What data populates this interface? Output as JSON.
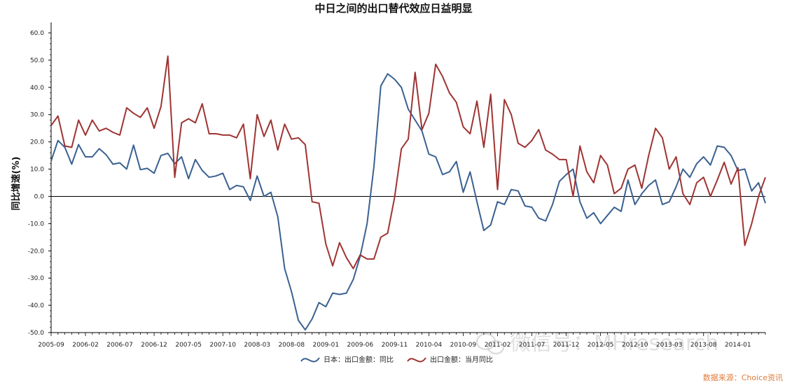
{
  "chart_data": {
    "type": "line",
    "title": "中日之间的出口替代效应日益明显",
    "ylabel": "同比增速(%)",
    "xlabel": "",
    "ylim": [
      -50,
      60
    ],
    "yticks": [
      "60.0",
      "50.0",
      "40.0",
      "30.0",
      "20.0",
      "10.0",
      "0.0",
      "-10.0",
      "-20.0",
      "-30.0",
      "-40.0",
      "-50.0"
    ],
    "xtick_labels": [
      "2005-09",
      "2006-02",
      "2006-07",
      "2006-12",
      "2007-05",
      "2007-10",
      "2008-03",
      "2008-08",
      "2009-01",
      "2009-06",
      "2009-11",
      "2010-04",
      "2010-09",
      "2011-02",
      "2011-07",
      "2011-12",
      "2012-05",
      "2012-10",
      "2013-03",
      "2013-08",
      "2014-01"
    ],
    "x_start": "2005-09",
    "x_end": "2014-05",
    "grid": false,
    "legend_position": "bottom",
    "zero_line": true,
    "series": [
      {
        "name": "日本：出口金额：同比",
        "color": "#3a6191",
        "values": [
          13.0,
          20.5,
          18.0,
          11.8,
          19.0,
          14.5,
          14.5,
          17.5,
          15.3,
          11.8,
          12.3,
          10.0,
          18.8,
          9.8,
          10.3,
          8.5,
          15.0,
          15.8,
          12.0,
          14.5,
          6.5,
          13.5,
          9.5,
          7.0,
          7.5,
          8.5,
          2.5,
          4.0,
          3.5,
          -1.5,
          7.5,
          0.0,
          1.5,
          -7.5,
          -26.5,
          -35.0,
          -45.5,
          -49.0,
          -45.0,
          -39.0,
          -40.5,
          -35.5,
          -36.0,
          -35.5,
          -30.5,
          -22.0,
          -10.0,
          11.0,
          40.5,
          45.0,
          43.0,
          40.0,
          32.0,
          28.0,
          24.0,
          15.5,
          14.5,
          8.0,
          9.0,
          12.8,
          1.5,
          9.0,
          -2.0,
          -12.5,
          -10.5,
          -2.0,
          -3.0,
          2.5,
          2.0,
          -3.5,
          -4.0,
          -8.0,
          -9.0,
          -3.0,
          5.5,
          8.0,
          10.0,
          -2.0,
          -8.0,
          -6.0,
          -10.0,
          -7.0,
          -4.0,
          -5.5,
          6.0,
          -3.0,
          1.0,
          4.0,
          6.0,
          -3.0,
          -2.0,
          3.5,
          10.0,
          7.0,
          12.0,
          14.5,
          11.5,
          18.5,
          18.0,
          15.0,
          9.5,
          10.0,
          2.0,
          5.0,
          -2.5
        ]
      },
      {
        "name": "出口金额：当月同比",
        "color": "#9e3432",
        "values": [
          26.0,
          29.5,
          18.5,
          18.0,
          28.0,
          22.5,
          28.0,
          24.0,
          25.0,
          23.5,
          22.5,
          32.5,
          30.5,
          29.0,
          32.5,
          25.0,
          33.0,
          51.5,
          7.0,
          27.0,
          28.5,
          27.0,
          34.0,
          23.0,
          23.0,
          22.5,
          22.5,
          21.5,
          26.5,
          6.5,
          30.0,
          22.0,
          28.0,
          17.0,
          26.5,
          21.0,
          21.5,
          19.0,
          -2.0,
          -2.5,
          -17.5,
          -25.5,
          -17.0,
          -22.5,
          -26.5,
          -21.5,
          -23.0,
          -23.0,
          -15.0,
          -13.5,
          -0.5,
          17.5,
          21.0,
          45.5,
          24.5,
          30.5,
          48.5,
          44.0,
          38.0,
          34.5,
          25.5,
          23.0,
          35.0,
          18.0,
          37.5,
          2.5,
          35.5,
          30.0,
          19.5,
          18.0,
          20.5,
          24.5,
          17.0,
          15.5,
          13.5,
          13.5,
          0.0,
          18.5,
          9.0,
          5.0,
          15.0,
          11.5,
          1.0,
          3.0,
          10.0,
          11.5,
          3.0,
          15.0,
          25.0,
          21.5,
          10.0,
          14.5,
          1.0,
          -3.0,
          5.0,
          7.0,
          0.0,
          6.0,
          12.5,
          4.5,
          10.5,
          -18.0,
          -10.0,
          0.0,
          7.0
        ]
      }
    ]
  },
  "source_text": "数据来源：Choice资讯",
  "watermark_text": "微信号：MHresearch",
  "colors": {
    "axis": "#000000",
    "zero_line": "#000000",
    "background": "#ffffff",
    "source": "#e07b39"
  }
}
